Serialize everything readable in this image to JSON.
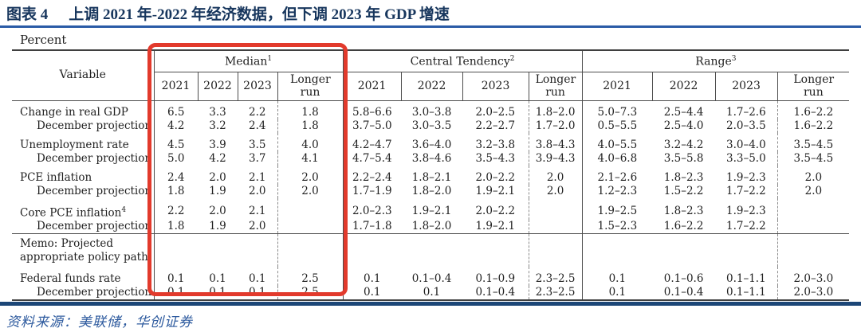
{
  "title": {
    "figure_label": "图表 4",
    "text": "上调 2021 年-2022 年经济数据，但下调 2023 年 GDP 增速"
  },
  "source": "资料来源：美联储，华创证券",
  "colors": {
    "title_navy": "#17365d",
    "title_rule_blue": "#2a5ba6",
    "bottom_rule_navy": "#1c4677",
    "source_blue": "#2d5a9e",
    "highlight_red": "#e23a2c"
  },
  "table": {
    "unit_label": "Percent",
    "corner_header": "Variable",
    "sections": [
      {
        "label": "Median",
        "sup": "1"
      },
      {
        "label": "Central Tendency",
        "sup": "2"
      },
      {
        "label": "Range",
        "sup": "3"
      }
    ],
    "year_headers": [
      "2021",
      "2022",
      "2023",
      "Longer run"
    ],
    "rows": [
      {
        "label": "Change in real GDP",
        "sup": "",
        "indent": false,
        "group_start": false,
        "first_group": true,
        "memo": false,
        "median": [
          "6.5",
          "3.3",
          "2.2",
          "1.8"
        ],
        "central_tendency": [
          "5.8–6.6",
          "3.0–3.8",
          "2.0–2.5",
          "1.8–2.0"
        ],
        "range": [
          "5.0–7.3",
          "2.5–4.4",
          "1.7–2.6",
          "1.6–2.2"
        ]
      },
      {
        "label": "December projection",
        "sup": "",
        "indent": true,
        "group_start": false,
        "first_group": false,
        "memo": false,
        "median": [
          "4.2",
          "3.2",
          "2.4",
          "1.8"
        ],
        "central_tendency": [
          "3.7–5.0",
          "3.0–3.5",
          "2.2–2.7",
          "1.7–2.0"
        ],
        "range": [
          "0.5–5.5",
          "2.5–4.0",
          "2.0–3.5",
          "1.6–2.2"
        ]
      },
      {
        "label": "Unemployment rate",
        "sup": "",
        "indent": false,
        "group_start": true,
        "first_group": false,
        "memo": false,
        "median": [
          "4.5",
          "3.9",
          "3.5",
          "4.0"
        ],
        "central_tendency": [
          "4.2–4.7",
          "3.6–4.0",
          "3.2–3.8",
          "3.8–4.3"
        ],
        "range": [
          "4.0–5.5",
          "3.2–4.2",
          "3.0–4.0",
          "3.5–4.5"
        ]
      },
      {
        "label": "December projection",
        "sup": "",
        "indent": true,
        "group_start": false,
        "first_group": false,
        "memo": false,
        "median": [
          "5.0",
          "4.2",
          "3.7",
          "4.1"
        ],
        "central_tendency": [
          "4.7–5.4",
          "3.8–4.6",
          "3.5–4.3",
          "3.9–4.3"
        ],
        "range": [
          "4.0–6.8",
          "3.5–5.8",
          "3.3–5.0",
          "3.5–4.5"
        ]
      },
      {
        "label": "PCE inflation",
        "sup": "",
        "indent": false,
        "group_start": true,
        "first_group": false,
        "memo": false,
        "median": [
          "2.4",
          "2.0",
          "2.1",
          "2.0"
        ],
        "central_tendency": [
          "2.2–2.4",
          "1.8–2.1",
          "2.0–2.2",
          "2.0"
        ],
        "range": [
          "2.1–2.6",
          "1.8–2.3",
          "1.9–2.3",
          "2.0"
        ]
      },
      {
        "label": "December projection",
        "sup": "",
        "indent": true,
        "group_start": false,
        "first_group": false,
        "memo": false,
        "median": [
          "1.8",
          "1.9",
          "2.0",
          "2.0"
        ],
        "central_tendency": [
          "1.7–1.9",
          "1.8–2.0",
          "1.9–2.1",
          "2.0"
        ],
        "range": [
          "1.2–2.3",
          "1.5–2.2",
          "1.7–2.2",
          "2.0"
        ]
      },
      {
        "label": "Core PCE inflation",
        "sup": "4",
        "indent": false,
        "group_start": true,
        "first_group": false,
        "memo": false,
        "median": [
          "2.2",
          "2.0",
          "2.1",
          ""
        ],
        "central_tendency": [
          "2.0–2.3",
          "1.9–2.1",
          "2.0–2.2",
          ""
        ],
        "range": [
          "1.9–2.5",
          "1.8–2.3",
          "1.9–2.3",
          ""
        ]
      },
      {
        "label": "December projection",
        "sup": "",
        "indent": true,
        "group_start": false,
        "first_group": false,
        "memo": false,
        "median": [
          "1.8",
          "1.9",
          "2.0",
          ""
        ],
        "central_tendency": [
          "1.7–1.8",
          "1.8–2.0",
          "1.9–2.1",
          ""
        ],
        "range": [
          "1.5–2.3",
          "1.6–2.2",
          "1.7–2.2",
          ""
        ]
      },
      {
        "label": "Memo: Projected\nappropriate policy path",
        "sup": "",
        "indent": false,
        "group_start": false,
        "first_group": false,
        "memo": true,
        "median": [
          "",
          "",
          "",
          ""
        ],
        "central_tendency": [
          "",
          "",
          "",
          ""
        ],
        "range": [
          "",
          "",
          "",
          ""
        ]
      },
      {
        "label": "Federal funds rate",
        "sup": "",
        "indent": false,
        "group_start": true,
        "first_group": false,
        "memo": false,
        "median": [
          "0.1",
          "0.1",
          "0.1",
          "2.5"
        ],
        "central_tendency": [
          "0.1",
          "0.1–0.4",
          "0.1–0.9",
          "2.3–2.5"
        ],
        "range": [
          "0.1",
          "0.1–0.6",
          "0.1–1.1",
          "2.0–3.0"
        ]
      },
      {
        "label": "December projection",
        "sup": "",
        "indent": true,
        "group_start": false,
        "first_group": false,
        "memo": false,
        "median": [
          "0.1",
          "0.1",
          "0.1",
          "2.5"
        ],
        "central_tendency": [
          "0.1",
          "0.1",
          "0.1–0.4",
          "2.3–2.5"
        ],
        "range": [
          "0.1",
          "0.1–0.4",
          "0.1–1.1",
          "2.0–3.0"
        ]
      }
    ]
  }
}
